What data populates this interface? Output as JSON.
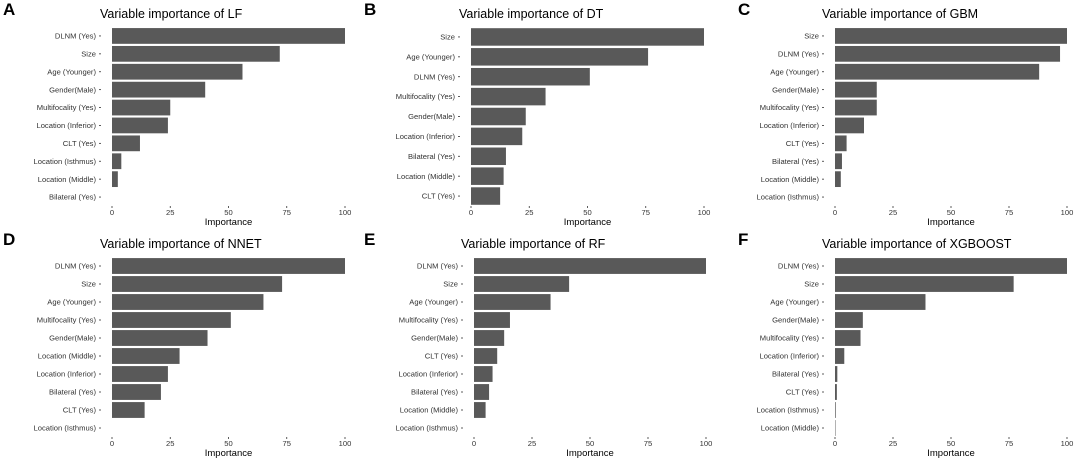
{
  "chart_data": [
    {
      "panel": "A",
      "type": "bar",
      "orientation": "horizontal",
      "title": "Variable importance of LF",
      "xlabel": "Importance",
      "ylabel": "",
      "xlim": [
        0,
        100
      ],
      "xticks": [
        0,
        25,
        50,
        75,
        100
      ],
      "grid": false,
      "categories": [
        "DLNM (Yes)",
        "Size",
        "Age (Younger)",
        "Gender(Male)",
        "Multifocality (Yes)",
        "Location (Inferior)",
        "CLT (Yes)",
        "Location (Isthmus)",
        "Location (Middle)",
        "Bilateral (Yes)"
      ],
      "values": [
        100,
        72,
        56,
        40,
        25,
        24,
        12,
        4,
        2.5,
        0
      ]
    },
    {
      "panel": "B",
      "type": "bar",
      "orientation": "horizontal",
      "title": "Variable importance of DT",
      "xlabel": "Importance",
      "ylabel": "",
      "xlim": [
        0,
        100
      ],
      "xticks": [
        0,
        25,
        50,
        75,
        100
      ],
      "grid": false,
      "categories": [
        "Size",
        "Age (Younger)",
        "DLNM (Yes)",
        "Multifocality (Yes)",
        "Gender(Male)",
        "Location (Inferior)",
        "Bilateral (Yes)",
        "Location (Middle)",
        "CLT (Yes)"
      ],
      "values": [
        100,
        76,
        51,
        32,
        23.5,
        22,
        15,
        14,
        12.5
      ]
    },
    {
      "panel": "C",
      "type": "bar",
      "orientation": "horizontal",
      "title": "Variable importance of GBM",
      "xlabel": "Importance",
      "ylabel": "",
      "xlim": [
        0,
        100
      ],
      "xticks": [
        0,
        25,
        50,
        75,
        100
      ],
      "grid": false,
      "categories": [
        "Size",
        "DLNM (Yes)",
        "Age (Younger)",
        "Gender(Male)",
        "Multifocality (Yes)",
        "Location (Inferior)",
        "CLT (Yes)",
        "Bilateral (Yes)",
        "Location (Middle)",
        "Location (Isthmus)"
      ],
      "values": [
        100,
        97,
        88,
        18,
        18,
        12.5,
        5,
        3,
        2.5,
        0
      ]
    },
    {
      "panel": "D",
      "type": "bar",
      "orientation": "horizontal",
      "title": "Variable importance of NNET",
      "xlabel": "Importance",
      "ylabel": "",
      "xlim": [
        0,
        100
      ],
      "xticks": [
        0,
        25,
        50,
        75,
        100
      ],
      "grid": false,
      "categories": [
        "DLNM (Yes)",
        "Size",
        "Age (Younger)",
        "Multifocality (Yes)",
        "Gender(Male)",
        "Location (Middle)",
        "Location (Inferior)",
        "Bilateral (Yes)",
        "CLT (Yes)",
        "Location (Isthmus)"
      ],
      "values": [
        100,
        73,
        65,
        51,
        41,
        29,
        24,
        21,
        14,
        0
      ]
    },
    {
      "panel": "E",
      "type": "bar",
      "orientation": "horizontal",
      "title": "Variable importance of RF",
      "xlabel": "Importance",
      "ylabel": "",
      "xlim": [
        0,
        100
      ],
      "xticks": [
        0,
        25,
        50,
        75,
        100
      ],
      "grid": false,
      "categories": [
        "DLNM (Yes)",
        "Size",
        "Age (Younger)",
        "Multifocality (Yes)",
        "Gender(Male)",
        "CLT (Yes)",
        "Location (Inferior)",
        "Bilateral (Yes)",
        "Location (Middle)",
        "Location (Isthmus)"
      ],
      "values": [
        100,
        41,
        33,
        15.5,
        13,
        10,
        8,
        6.5,
        5,
        0
      ]
    },
    {
      "panel": "F",
      "type": "bar",
      "orientation": "horizontal",
      "title": "Variable importance of XGBOOST",
      "xlabel": "Importance",
      "ylabel": "",
      "xlim": [
        0,
        100
      ],
      "xticks": [
        0,
        25,
        50,
        75,
        100
      ],
      "grid": false,
      "categories": [
        "DLNM (Yes)",
        "Size",
        "Age (Younger)",
        "Gender(Male)",
        "Multifocality (Yes)",
        "Location (Inferior)",
        "Bilateral (Yes)",
        "CLT (Yes)",
        "Location (Isthmus)",
        "Location (Middle)"
      ],
      "values": [
        100,
        77,
        39,
        12,
        11,
        4,
        1,
        0.8,
        0.3,
        0.2
      ]
    }
  ]
}
